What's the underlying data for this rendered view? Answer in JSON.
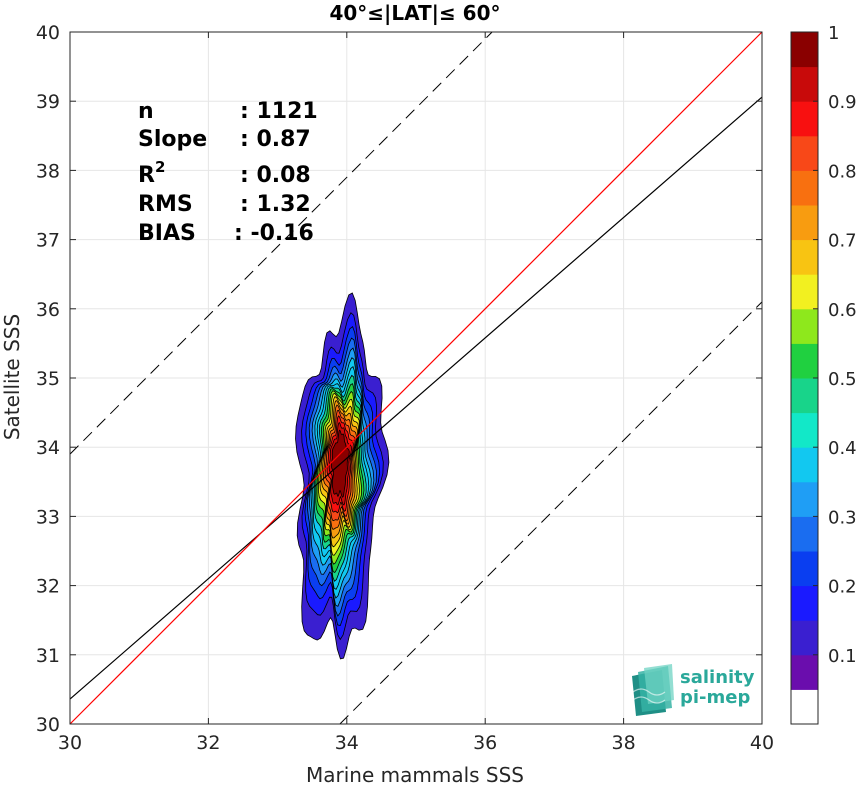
{
  "chart_data": {
    "type": "heatmap",
    "title": "40°≤|LAT|≤ 60°",
    "xlabel": "Marine mammals SSS",
    "ylabel": "Satellite SSS",
    "xlim": [
      30,
      40
    ],
    "ylim": [
      30,
      40
    ],
    "xticks": [
      "30",
      "32",
      "34",
      "36",
      "38",
      "40"
    ],
    "yticks": [
      "30",
      "31",
      "32",
      "33",
      "34",
      "35",
      "36",
      "37",
      "38",
      "39",
      "40"
    ],
    "grid": true,
    "stats": {
      "n": {
        "label": "n",
        "value": ": 1121"
      },
      "slope": {
        "label": "Slope",
        "value": ": 0.87"
      },
      "r2": {
        "label": "R",
        "sup": "2",
        "value": ": 0.08"
      },
      "rms": {
        "label": "RMS",
        "value": ": 1.32"
      },
      "bias": {
        "label": "BIAS",
        "value": ": -0.16"
      }
    },
    "lines": {
      "identity": {
        "color": "#ff0000",
        "slope": 1,
        "intercept": 0
      },
      "fit": {
        "color": "#000000",
        "slope": 0.87,
        "intercept": 4.26
      },
      "upper_dashed": {
        "color": "#000000",
        "slope": 1,
        "intercept": 3.9
      },
      "lower_dashed": {
        "color": "#000000",
        "slope": 1,
        "intercept": -3.9
      }
    },
    "density": {
      "center_x": 33.9,
      "center_y": 33.6,
      "spread_x": 0.45,
      "spread_y": 1.45,
      "levels": [
        0.05,
        0.1,
        0.15,
        0.2,
        0.25,
        0.3,
        0.35,
        0.4,
        0.45,
        0.5,
        0.55,
        0.6,
        0.65,
        0.7,
        0.75,
        0.8,
        0.85,
        0.9
      ]
    },
    "colorbar": {
      "ticks": [
        "0.1",
        "0.2",
        "0.3",
        "0.4",
        "0.5",
        "0.6",
        "0.7",
        "0.8",
        "0.9",
        "1"
      ],
      "range": [
        0,
        1
      ],
      "colors": [
        "#ffffff",
        "#6a0dad",
        "#3a1fd0",
        "#1a1aff",
        "#0a3ef0",
        "#1a6df0",
        "#1f9ef5",
        "#12c8f0",
        "#12e8c8",
        "#18d48a",
        "#20d040",
        "#8ee81c",
        "#f2f020",
        "#f8c412",
        "#f89c10",
        "#f87010",
        "#f84818",
        "#f81010",
        "#c80a0a",
        "#8a0000"
      ]
    },
    "logo": {
      "line1": "salinity",
      "line2": "pi-mep"
    }
  }
}
